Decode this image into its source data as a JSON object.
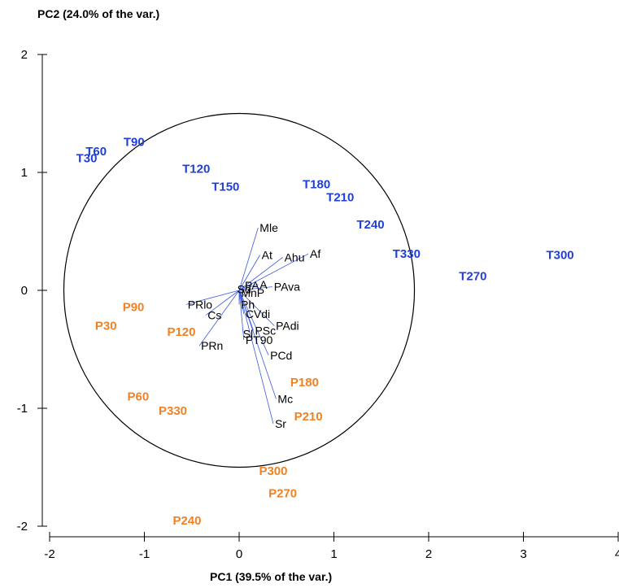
{
  "chart_data": {
    "type": "scatter",
    "title": "",
    "xlabel": "PC1 (39.5% of the var.)",
    "ylabel": "PC2 (24.0% of the var.)",
    "xlim": [
      -2,
      4
    ],
    "ylim": [
      -2,
      2
    ],
    "xticks": [
      -2,
      -1,
      0,
      1,
      2,
      3,
      4
    ],
    "yticks": [
      -2,
      -1,
      0,
      1,
      2
    ],
    "xtick_labels": [
      "-2",
      "-1",
      "0",
      "1",
      "2",
      "3",
      "4"
    ],
    "ytick_labels": [
      "-2",
      "-1",
      "0",
      "1",
      "2"
    ],
    "grid": false,
    "circle": {
      "cx": 0.0,
      "cy": 0.0,
      "r": 1.0
    },
    "colors": {
      "T": "#1f3fd8",
      "P": "#f08224",
      "loading": "#000000",
      "arrow": "#3a59e0"
    },
    "series": [
      {
        "group": "T",
        "points": [
          {
            "label": "T30",
            "x": -1.72,
            "y": 1.12
          },
          {
            "label": "T60",
            "x": -1.62,
            "y": 1.18
          },
          {
            "label": "T90",
            "x": -1.22,
            "y": 1.26
          },
          {
            "label": "T120",
            "x": -0.6,
            "y": 1.03
          },
          {
            "label": "T150",
            "x": -0.29,
            "y": 0.88
          },
          {
            "label": "T180",
            "x": 0.67,
            "y": 0.9
          },
          {
            "label": "T210",
            "x": 0.92,
            "y": 0.79
          },
          {
            "label": "T240",
            "x": 1.24,
            "y": 0.56
          },
          {
            "label": "T330",
            "x": 1.62,
            "y": 0.31
          },
          {
            "label": "T300",
            "x": 3.24,
            "y": 0.3
          },
          {
            "label": "T270",
            "x": 2.32,
            "y": 0.12
          }
        ]
      },
      {
        "group": "P",
        "points": [
          {
            "label": "P90",
            "x": -1.23,
            "y": -0.14
          },
          {
            "label": "P30",
            "x": -1.52,
            "y": -0.3
          },
          {
            "label": "P120",
            "x": -0.76,
            "y": -0.35
          },
          {
            "label": "P180",
            "x": 0.54,
            "y": -0.78
          },
          {
            "label": "P60",
            "x": -1.18,
            "y": -0.9
          },
          {
            "label": "P330",
            "x": -0.85,
            "y": -1.02
          },
          {
            "label": "P210",
            "x": 0.58,
            "y": -1.07
          },
          {
            "label": "P300",
            "x": 0.21,
            "y": -1.53
          },
          {
            "label": "P270",
            "x": 0.31,
            "y": -1.72
          },
          {
            "label": "P240",
            "x": -0.7,
            "y": -1.95
          }
        ]
      }
    ],
    "loadings": [
      {
        "label": "Mle",
        "x": 0.2,
        "y": 0.53
      },
      {
        "label": "At",
        "x": 0.22,
        "y": 0.3
      },
      {
        "label": "Ahu",
        "x": 0.46,
        "y": 0.28
      },
      {
        "label": "Af",
        "x": 0.73,
        "y": 0.31
      },
      {
        "label": "PAva",
        "x": 0.35,
        "y": 0.03
      },
      {
        "label": "A",
        "x": 0.2,
        "y": 0.05
      },
      {
        "label": "PRlo",
        "x": -0.56,
        "y": -0.12
      },
      {
        "label": "Ph",
        "x": 0.0,
        "y": -0.12
      },
      {
        "label": "Cs",
        "x": -0.35,
        "y": -0.21
      },
      {
        "label": "CVdi",
        "x": 0.05,
        "y": -0.2
      },
      {
        "label": "PAdi",
        "x": 0.37,
        "y": -0.3
      },
      {
        "label": "PSc",
        "x": 0.15,
        "y": -0.34
      },
      {
        "label": "PT90",
        "x": 0.05,
        "y": -0.42
      },
      {
        "label": "PRn",
        "x": -0.42,
        "y": -0.47
      },
      {
        "label": "PCd",
        "x": 0.31,
        "y": -0.55
      },
      {
        "label": "Mc",
        "x": 0.39,
        "y": -0.92
      },
      {
        "label": "Sr",
        "x": 0.36,
        "y": -1.13
      }
    ],
    "cluster_labels": [
      {
        "label": "Sd",
        "x": -0.02,
        "y": 0.01
      },
      {
        "label": "MnP",
        "x": 0.02,
        "y": -0.02
      },
      {
        "label": "Sl",
        "x": 0.04,
        "y": -0.37
      },
      {
        "label": "PA",
        "x": 0.06,
        "y": 0.04
      }
    ]
  }
}
